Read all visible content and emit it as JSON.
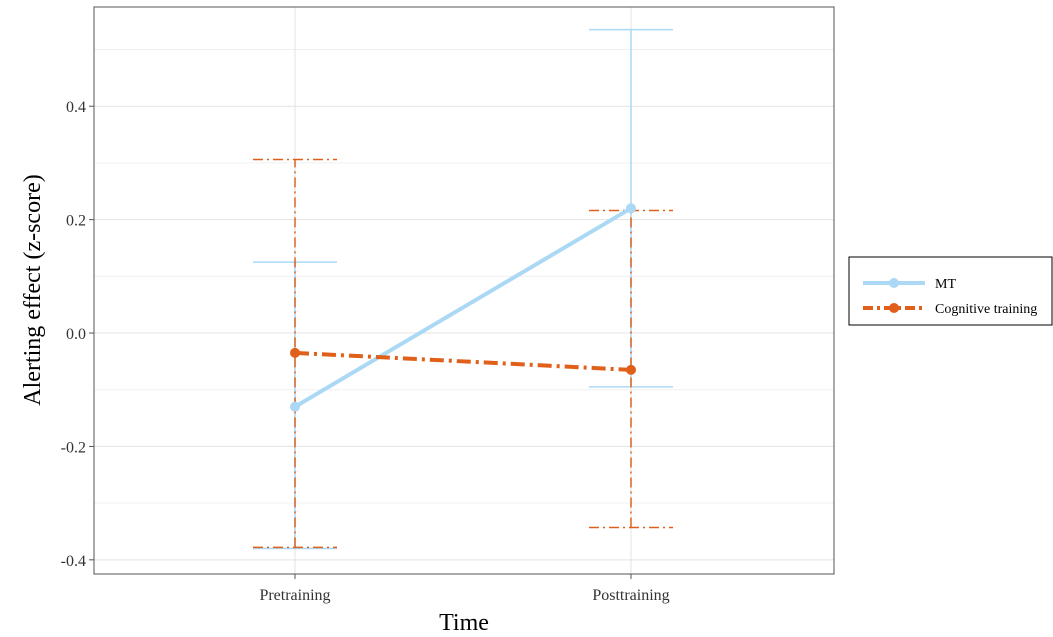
{
  "chart_data": {
    "type": "line",
    "title": "",
    "xlabel": "Time",
    "ylabel": "Alerting effect (z-score)",
    "categories": [
      "Pretraining",
      "Posttraining"
    ],
    "ylim": [
      -0.425,
      0.575
    ],
    "yticks": [
      -0.4,
      -0.2,
      0.0,
      0.2,
      0.4
    ],
    "ytick_labels": [
      "-0.4",
      "-0.2",
      "0.0",
      "0.2",
      "0.4"
    ],
    "grid": true,
    "legend_position": "right",
    "series": [
      {
        "name": "MT",
        "color": "#abd9f5",
        "line_style": "solid",
        "values": [
          -0.13,
          0.22
        ],
        "error_low": [
          -0.38,
          -0.095
        ],
        "error_high": [
          0.125,
          0.535
        ]
      },
      {
        "name": "Cognitive training",
        "color": "#e0601a",
        "line_style": "dashdot",
        "values": [
          -0.035,
          -0.065
        ],
        "error_low": [
          -0.378,
          -0.343
        ],
        "error_high": [
          0.306,
          0.216
        ]
      }
    ]
  }
}
